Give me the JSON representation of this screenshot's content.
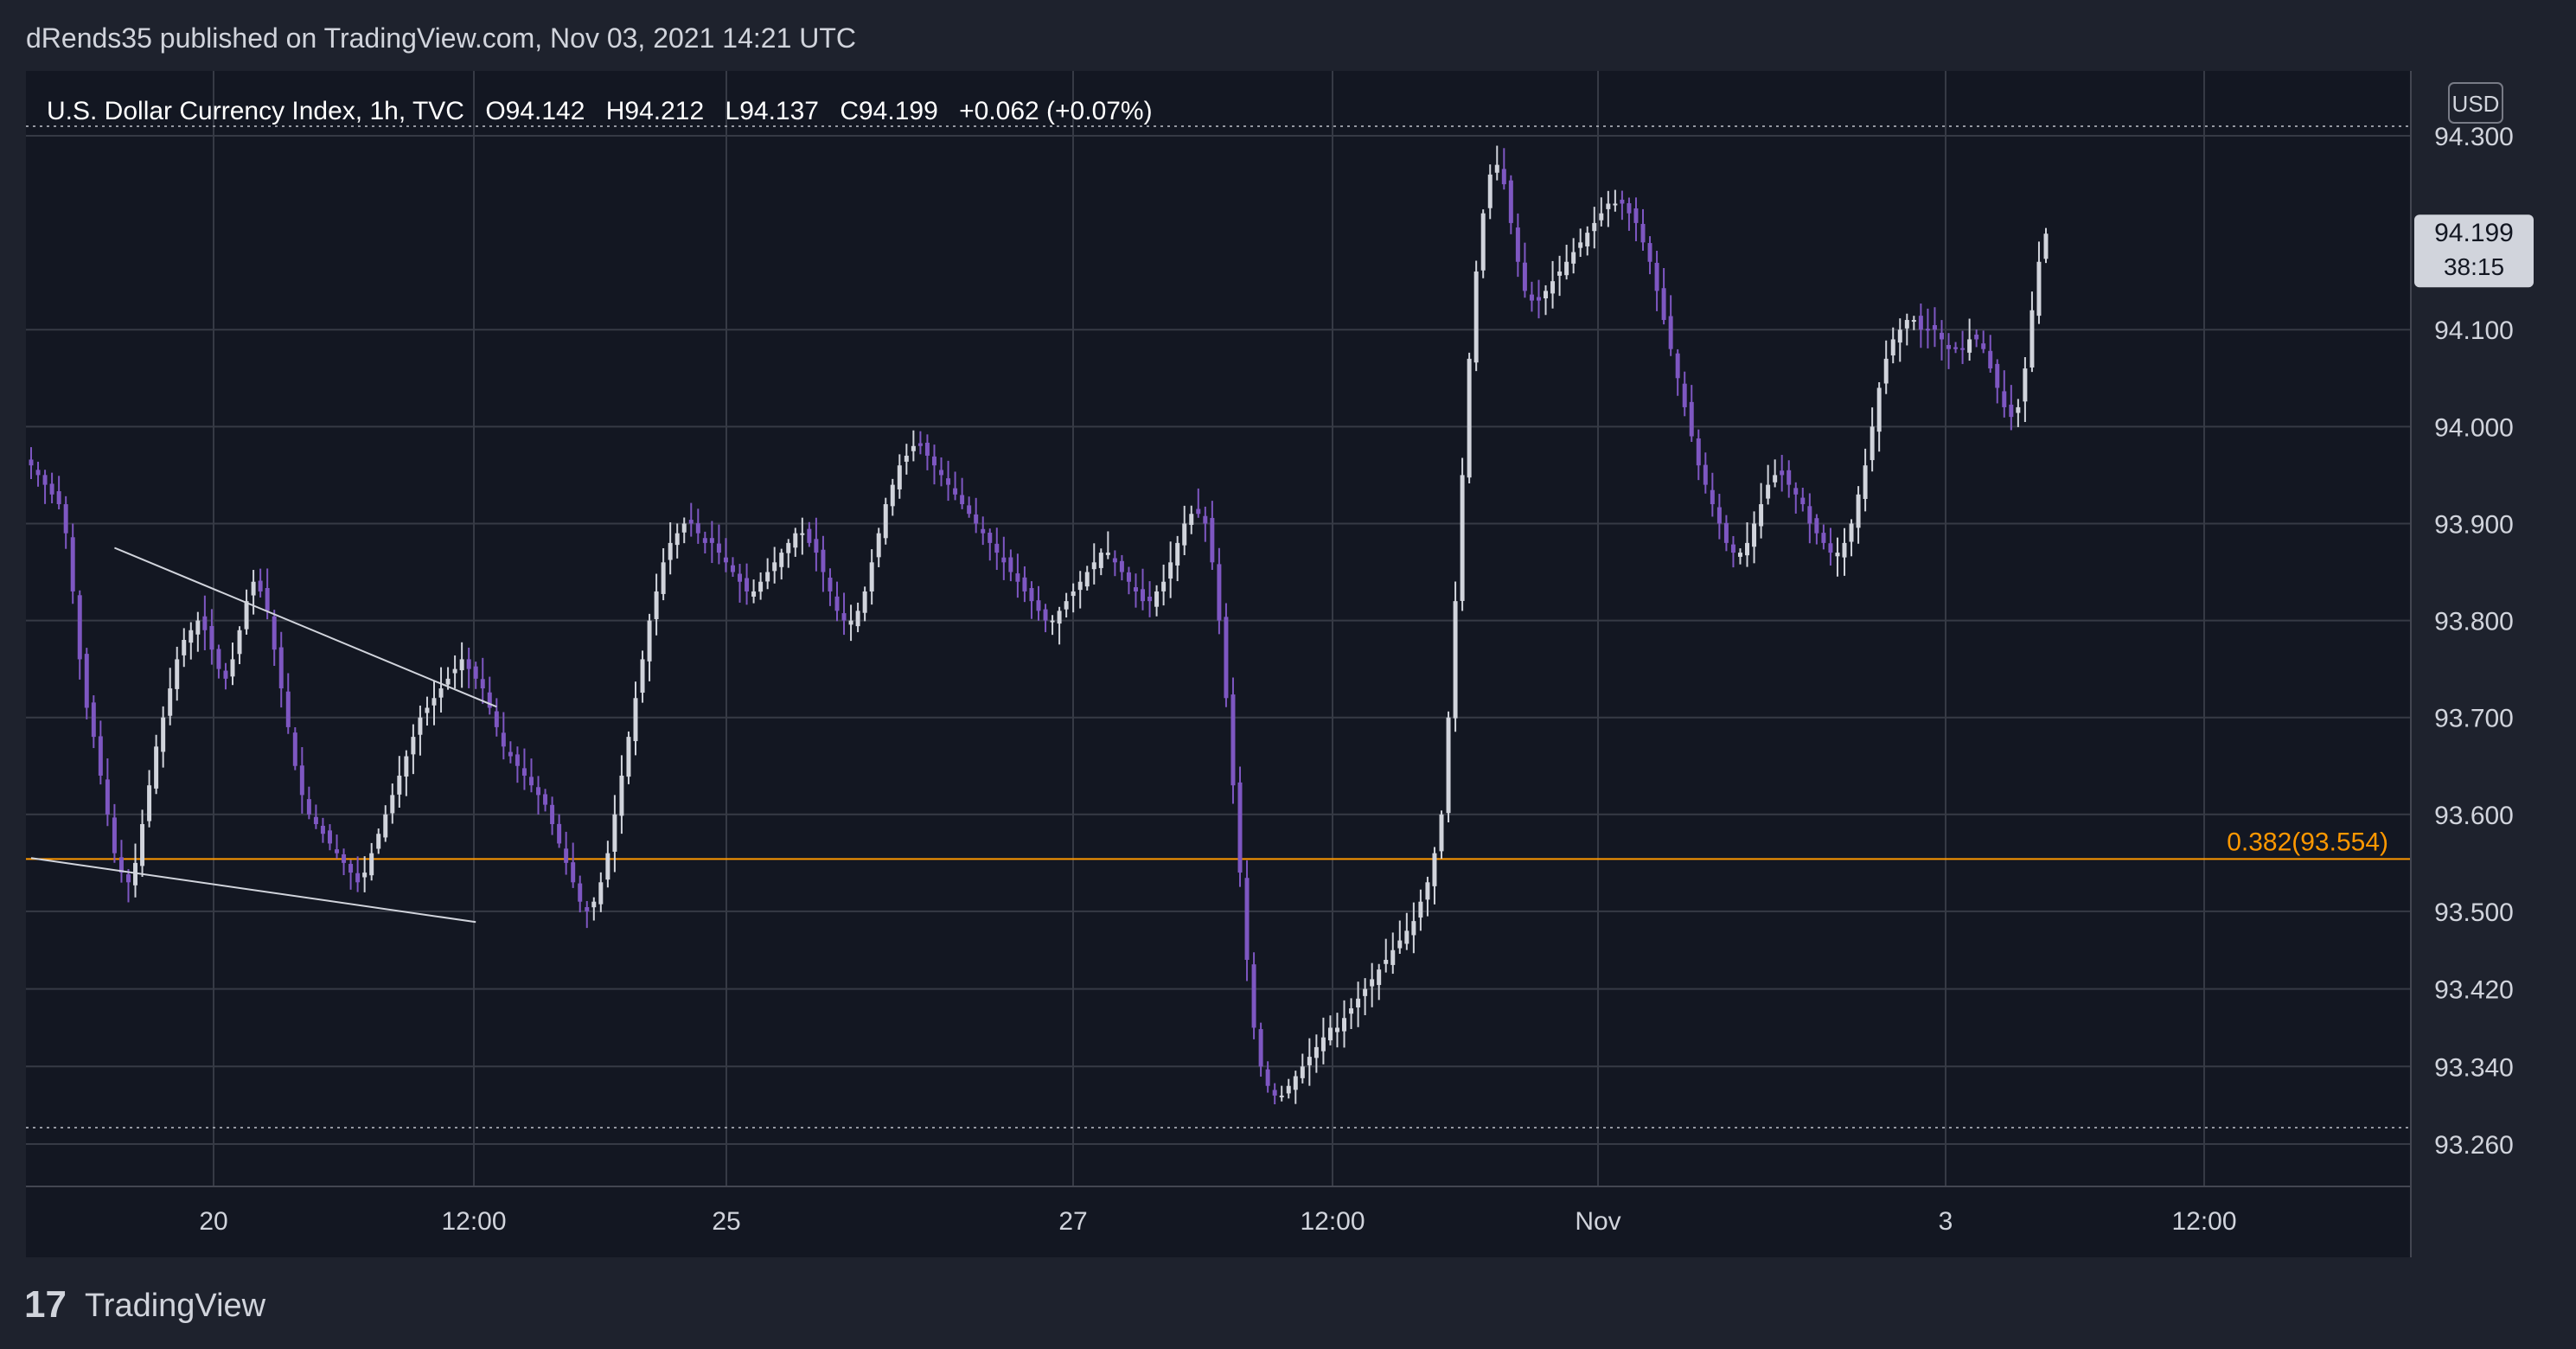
{
  "header": {
    "published_by": "dRends35 published on TradingView.com, Nov 03, 2021 14:21 UTC"
  },
  "legend": {
    "symbol": "U.S. Dollar Currency Index, 1h, TVC",
    "open": "O94.142",
    "high": "H94.212",
    "low": "L94.137",
    "close": "C94.199",
    "change": "+0.062 (+0.07%)"
  },
  "price_scale": {
    "currency": "USD",
    "ticks": [
      "94.300",
      "94.100",
      "94.000",
      "93.900",
      "93.800",
      "93.700",
      "93.600",
      "93.500",
      "93.420",
      "93.340",
      "93.260"
    ],
    "current_price": "94.199",
    "countdown": "38:15"
  },
  "time_scale": {
    "ticks": [
      "20",
      "12:00",
      "25",
      "27",
      "12:00",
      "Nov",
      "3",
      "12:00"
    ]
  },
  "fib_label": "0.382(93.554)",
  "footer": {
    "brand": "TradingView",
    "logo_text": "17"
  },
  "colors": {
    "background": "#131722",
    "frame": "#1e222d",
    "grid": "#363a45",
    "up_candle": "#d1d4dc",
    "down_candle": "#7e57c2",
    "fib_line": "#ff9800",
    "trend_line": "#d1d4dc",
    "price_badge": "#d1d4dc"
  },
  "chart_data": {
    "type": "candlestick",
    "symbol": "TVC:DXY",
    "interval": "1h",
    "y_range": [
      93.24,
      94.34
    ],
    "last_price": 94.199,
    "fib_level": {
      "ratio": 0.382,
      "price": 93.554
    },
    "trend_lines": [
      {
        "from_candle": 0,
        "from_price": 93.555,
        "to_candle": 64,
        "to_price": 93.489
      },
      {
        "from_candle": 12,
        "from_price": 93.875,
        "to_candle": 67,
        "to_price": 93.711
      }
    ],
    "closes": [
      93.96,
      93.95,
      93.94,
      93.93,
      93.92,
      93.89,
      93.83,
      93.76,
      93.71,
      93.68,
      93.64,
      93.6,
      93.56,
      93.54,
      93.53,
      93.55,
      93.59,
      93.63,
      93.67,
      93.7,
      93.73,
      93.76,
      93.78,
      93.79,
      93.8,
      93.79,
      93.77,
      93.75,
      93.74,
      93.76,
      93.79,
      93.82,
      93.84,
      93.83,
      93.81,
      93.77,
      93.73,
      93.69,
      93.65,
      93.62,
      93.6,
      93.59,
      93.58,
      93.57,
      93.56,
      93.55,
      93.54,
      93.53,
      93.54,
      93.56,
      93.58,
      93.6,
      93.62,
      93.64,
      93.66,
      93.68,
      93.7,
      93.71,
      93.72,
      93.73,
      93.74,
      93.75,
      93.76,
      93.75,
      93.74,
      93.73,
      93.71,
      93.69,
      93.67,
      93.66,
      93.65,
      93.64,
      93.63,
      93.62,
      93.61,
      93.59,
      93.57,
      93.55,
      93.53,
      93.51,
      93.5,
      93.51,
      93.53,
      93.56,
      93.6,
      93.64,
      93.68,
      93.72,
      93.76,
      93.8,
      93.83,
      93.86,
      93.88,
      93.89,
      93.9,
      93.9,
      93.89,
      93.88,
      93.88,
      93.87,
      93.86,
      93.85,
      93.84,
      93.83,
      93.83,
      93.84,
      93.85,
      93.86,
      93.87,
      93.88,
      93.89,
      93.89,
      93.88,
      93.87,
      93.85,
      93.83,
      93.81,
      93.8,
      93.8,
      93.81,
      93.83,
      93.86,
      93.89,
      93.92,
      93.94,
      93.96,
      93.97,
      93.98,
      93.98,
      93.97,
      93.96,
      93.95,
      93.94,
      93.93,
      93.92,
      93.91,
      93.9,
      93.89,
      93.88,
      93.87,
      93.86,
      93.85,
      93.84,
      93.83,
      93.82,
      93.81,
      93.8,
      93.8,
      93.81,
      93.82,
      93.83,
      93.84,
      93.85,
      93.86,
      93.87,
      93.87,
      93.86,
      93.85,
      93.84,
      93.83,
      93.82,
      93.82,
      93.83,
      93.84,
      93.86,
      93.88,
      93.9,
      93.91,
      93.91,
      93.9,
      93.86,
      93.8,
      93.72,
      93.63,
      93.54,
      93.45,
      93.38,
      93.34,
      93.32,
      93.31,
      93.31,
      93.32,
      93.33,
      93.34,
      93.35,
      93.36,
      93.37,
      93.38,
      93.38,
      93.39,
      93.4,
      93.41,
      93.42,
      93.43,
      93.44,
      93.45,
      93.46,
      93.47,
      93.48,
      93.49,
      93.51,
      93.53,
      93.56,
      93.6,
      93.7,
      93.82,
      93.95,
      94.07,
      94.16,
      94.22,
      94.26,
      94.27,
      94.25,
      94.21,
      94.17,
      94.14,
      94.13,
      94.13,
      94.14,
      94.15,
      94.16,
      94.17,
      94.18,
      94.19,
      94.2,
      94.21,
      94.22,
      94.23,
      94.23,
      94.23,
      94.22,
      94.21,
      94.19,
      94.17,
      94.14,
      94.11,
      94.08,
      94.05,
      94.02,
      93.99,
      93.96,
      93.94,
      93.92,
      93.9,
      93.88,
      93.87,
      93.87,
      93.88,
      93.9,
      93.92,
      93.94,
      93.95,
      93.95,
      93.94,
      93.93,
      93.92,
      93.9,
      93.89,
      93.88,
      93.87,
      93.87,
      93.88,
      93.9,
      93.93,
      93.96,
      94.0,
      94.04,
      94.07,
      94.09,
      94.1,
      94.11,
      94.11,
      94.1,
      94.1,
      94.1,
      94.09,
      94.08,
      94.08,
      94.08,
      94.09,
      94.09,
      94.08,
      94.06,
      94.04,
      94.02,
      94.01,
      94.02,
      94.06,
      94.12,
      94.17,
      94.199
    ]
  }
}
